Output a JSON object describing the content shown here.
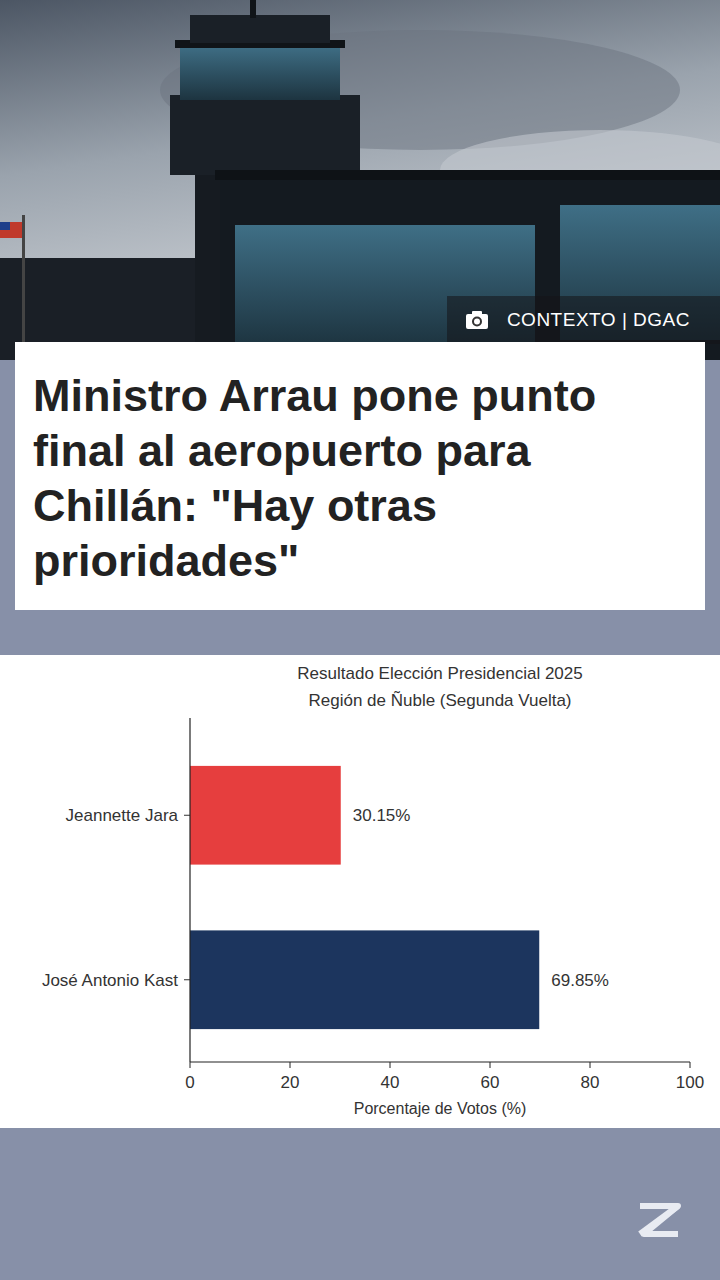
{
  "header": {
    "photo_credit": "CONTEXTO | DGAC",
    "headline": "Ministro Arrau pone punto final al aeropuerto para Chillán: \"Hay otras prioridades\""
  },
  "chart_data": {
    "type": "bar",
    "orientation": "horizontal",
    "title": "Resultado Elección Presidencial 2025",
    "subtitle": "Región de Ñuble (Segunda Vuelta)",
    "x_label": "Porcentaje de Votos (%)",
    "categories": [
      "Jeannette Jara",
      "José Antonio Kast"
    ],
    "values": [
      30.15,
      69.85
    ],
    "value_labels": [
      "30.15%",
      "69.85%"
    ],
    "colors": [
      "#e63e3e",
      "#1c355e"
    ],
    "xlim": [
      0,
      100
    ],
    "xticks": [
      0,
      20,
      40,
      60,
      80,
      100
    ],
    "grid": false,
    "data_labels": true
  }
}
